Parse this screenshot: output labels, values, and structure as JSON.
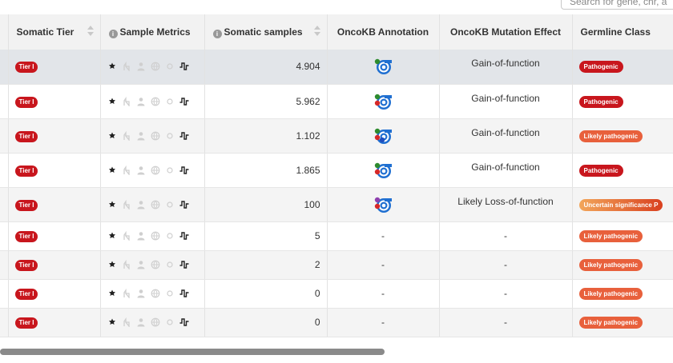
{
  "search": {
    "placeholder": "Search for gene, chr, a"
  },
  "columns": {
    "tier": "Somatic Tier",
    "metrics": "Sample Metrics",
    "samples": "Somatic samples",
    "oncokb": "OncoKB Annotation",
    "effect": "OncoKB Mutation Effect",
    "germline": "Germline Class"
  },
  "colors": {
    "tier": "#c8161d",
    "pathogenic": "#c8161d",
    "likely_pathogenic": "#e8603c",
    "uncertain_start": "#f2a65a",
    "uncertain_end": "#d9401f",
    "selected_row": "#e2e5e9",
    "header_bg": "#f2f2f2"
  },
  "metric_icons": [
    "paw-icon",
    "sample-hand-icon",
    "person-icon",
    "globe-icon",
    "circle-icon",
    "waveform-icon"
  ],
  "rows": [
    {
      "tier": "Tier I",
      "samples": "4.904",
      "oncokb_icon": "oncokb-target-icon",
      "oncokb_dots": [
        "#2e8b2e"
      ],
      "effect": "Gain-of-function",
      "germline": "Pathogenic",
      "germline_kind": "pathogenic"
    },
    {
      "tier": "Tier I",
      "samples": "5.962",
      "oncokb_icon": "oncokb-target-icon",
      "oncokb_dots": [
        "#2e8b2e",
        "#d62828"
      ],
      "effect": "Gain-of-function",
      "germline": "Pathogenic",
      "germline_kind": "pathogenic"
    },
    {
      "tier": "Tier I",
      "samples": "1.102",
      "oncokb_icon": "oncokb-target-icon",
      "oncokb_dots": [
        "#2e8b2e",
        "#d62828",
        "#1f4fbf"
      ],
      "effect": "Gain-of-function",
      "germline": "Likely pathogenic",
      "germline_kind": "likely"
    },
    {
      "tier": "Tier I",
      "samples": "1.865",
      "oncokb_icon": "oncokb-target-icon",
      "oncokb_dots": [
        "#2e8b2e",
        "#d62828"
      ],
      "effect": "Gain-of-function",
      "germline": "Pathogenic",
      "germline_kind": "pathogenic"
    },
    {
      "tier": "Tier I",
      "samples": "100",
      "oncokb_icon": "oncokb-target-icon",
      "oncokb_dots": [
        "#8e3fae",
        "#d62828"
      ],
      "effect": "Likely Loss-of-function",
      "germline": "Uncertain significance P",
      "germline_kind": "uncertain"
    },
    {
      "tier": "Tier I",
      "samples": "5",
      "oncokb_icon": "",
      "oncokb_text": "-",
      "effect": "-",
      "germline": "Likely pathogenic",
      "germline_kind": "likely"
    },
    {
      "tier": "Tier I",
      "samples": "2",
      "oncokb_icon": "",
      "oncokb_text": "-",
      "effect": "-",
      "germline": "Likely pathogenic",
      "germline_kind": "likely"
    },
    {
      "tier": "Tier I",
      "samples": "0",
      "oncokb_icon": "",
      "oncokb_text": "-",
      "effect": "-",
      "germline": "Likely pathogenic",
      "germline_kind": "likely"
    },
    {
      "tier": "Tier I",
      "samples": "0",
      "oncokb_icon": "",
      "oncokb_text": "-",
      "effect": "-",
      "germline": "Likely pathogenic",
      "germline_kind": "likely"
    }
  ]
}
